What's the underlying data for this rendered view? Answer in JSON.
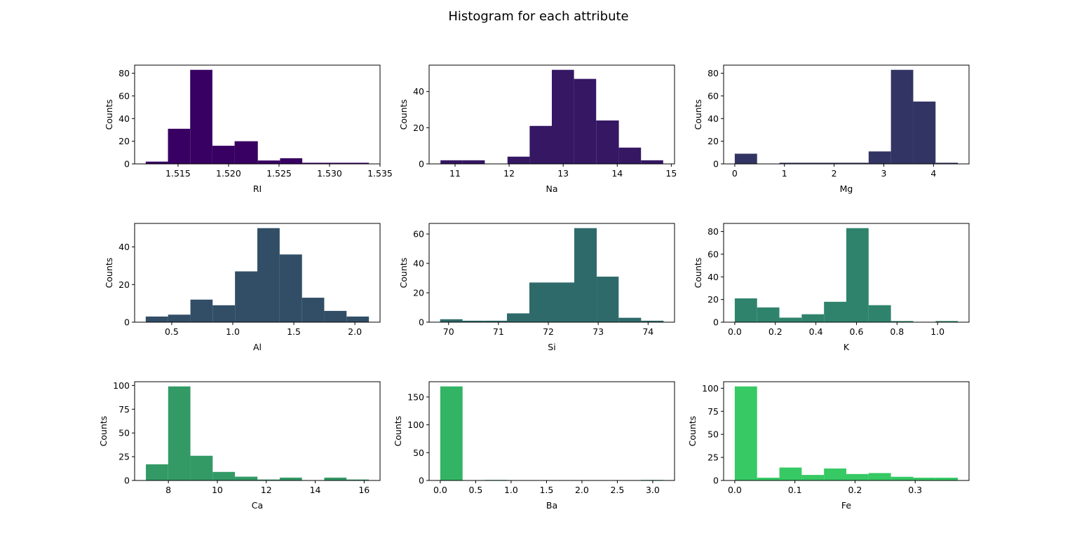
{
  "title": "Histogram for each attribute",
  "chart_data": [
    {
      "type": "histogram",
      "xlabel": "RI",
      "ylabel": "Counts",
      "color": "#370062",
      "bins": [
        1.5118,
        1.514,
        1.5162,
        1.5184,
        1.5206,
        1.5229,
        1.5251,
        1.5273,
        1.5295,
        1.5317,
        1.5339
      ],
      "values": [
        2,
        31,
        83,
        16,
        20,
        3,
        5,
        1,
        1,
        1
      ],
      "xlim": [
        1.5107,
        1.535
      ],
      "ylim": [
        0,
        87.15
      ],
      "xticks": [
        1.515,
        {
          "value": 1.52,
          "label": "1.520"
        },
        1.525,
        {
          "value": 1.53,
          "label": "1.530"
        },
        1.535
      ],
      "yticks": [
        0,
        20,
        40,
        60,
        80
      ]
    },
    {
      "type": "histogram",
      "xlabel": "Na",
      "ylabel": "Counts",
      "color": "#351764",
      "bins": [
        10.73,
        11.14,
        11.55,
        11.97,
        12.38,
        12.79,
        13.2,
        13.61,
        14.03,
        14.44,
        14.85
      ],
      "values": [
        2,
        2,
        0,
        4,
        21,
        52,
        47,
        24,
        9,
        2
      ],
      "xlim": [
        10.52,
        15.06
      ],
      "ylim": [
        0,
        54.6
      ],
      "xticks": [
        11,
        12,
        13,
        14,
        15
      ],
      "yticks": [
        0,
        20,
        40
      ]
    },
    {
      "type": "histogram",
      "xlabel": "Mg",
      "ylabel": "Counts",
      "color": "#323463",
      "bins": [
        0,
        0.449,
        0.898,
        1.347,
        1.796,
        2.245,
        2.694,
        3.143,
        3.592,
        4.041,
        4.49
      ],
      "values": [
        9,
        0,
        1,
        1,
        1,
        1,
        11,
        83,
        55,
        1
      ],
      "xlim": [
        -0.2245,
        4.7145
      ],
      "ylim": [
        0,
        87.15
      ],
      "xticks": [
        0,
        1,
        2,
        3,
        4
      ],
      "yticks": [
        0,
        20,
        40,
        60,
        80
      ]
    },
    {
      "type": "histogram",
      "xlabel": "Al",
      "ylabel": "Counts",
      "color": "#314e66",
      "bins": [
        0.287,
        0.47,
        0.653,
        0.835,
        1.018,
        1.201,
        1.384,
        1.567,
        1.749,
        1.932,
        2.115
      ],
      "values": [
        3,
        4,
        12,
        9,
        27,
        50,
        36,
        13,
        6,
        3
      ],
      "xlim": [
        0.196,
        2.206
      ],
      "ylim": [
        0,
        52.5
      ],
      "xticks": [
        0.5,
        {
          "value": 1,
          "label": "1.0"
        },
        1.5,
        {
          "value": 2,
          "label": "2.0"
        }
      ],
      "yticks": [
        0,
        20,
        40
      ]
    },
    {
      "type": "histogram",
      "xlabel": "Si",
      "ylabel": "Counts",
      "color": "#2f6a6a",
      "bins": [
        69.83,
        70.28,
        70.73,
        71.17,
        71.62,
        72.07,
        72.52,
        72.97,
        73.41,
        73.86,
        74.31
      ],
      "values": [
        2,
        1,
        1,
        6,
        27,
        27,
        64,
        31,
        3,
        1
      ],
      "xlim": [
        69.61,
        74.53
      ],
      "ylim": [
        0,
        67.2
      ],
      "xticks": [
        70,
        71,
        72,
        73,
        74
      ],
      "yticks": [
        0,
        20,
        40,
        60
      ]
    },
    {
      "type": "histogram",
      "xlabel": "K",
      "ylabel": "Counts",
      "color": "#2f836c",
      "bins": [
        0,
        0.11,
        0.22,
        0.33,
        0.44,
        0.55,
        0.66,
        0.77,
        0.88,
        0.99,
        1.1
      ],
      "values": [
        21,
        13,
        4,
        7,
        18,
        83,
        15,
        1,
        0,
        1
      ],
      "xlim": [
        -0.055,
        1.155
      ],
      "ylim": [
        0,
        87.15
      ],
      "xticks": [
        {
          "value": 0,
          "label": "0.0"
        },
        0.2,
        0.4,
        0.6,
        0.8,
        {
          "value": 1,
          "label": "1.0"
        }
      ],
      "yticks": [
        0,
        20,
        40,
        60,
        80
      ]
    },
    {
      "type": "histogram",
      "xlabel": "Ca",
      "ylabel": "Counts",
      "color": "#339a66",
      "bins": [
        7.08,
        7.99,
        8.9,
        9.81,
        10.72,
        11.64,
        12.55,
        13.46,
        14.37,
        15.28,
        16.19
      ],
      "values": [
        17,
        99,
        26,
        9,
        4,
        1,
        3,
        0,
        3,
        1
      ],
      "xlim": [
        6.62,
        16.65
      ],
      "ylim": [
        0,
        103.95
      ],
      "xticks": [
        8,
        10,
        12,
        14,
        16
      ],
      "yticks": [
        0,
        25,
        50,
        75,
        100
      ]
    },
    {
      "type": "histogram",
      "xlabel": "Ba",
      "ylabel": "Counts",
      "color": "#33b464",
      "bins": [
        0,
        0.315,
        0.63,
        0.945,
        1.26,
        1.575,
        1.89,
        2.205,
        2.52,
        2.835,
        3.15
      ],
      "values": [
        169,
        0,
        1,
        0,
        0,
        0,
        0,
        0,
        0,
        1
      ],
      "xlim": [
        -0.1575,
        3.3075
      ],
      "ylim": [
        0,
        177.45
      ],
      "xticks": [
        {
          "value": 0,
          "label": "0.0"
        },
        0.5,
        {
          "value": 1,
          "label": "1.0"
        },
        1.5,
        {
          "value": 2,
          "label": "2.0"
        },
        2.5,
        {
          "value": 3,
          "label": "3.0"
        }
      ],
      "yticks": [
        0,
        50,
        100,
        150
      ]
    },
    {
      "type": "histogram",
      "xlabel": "Fe",
      "ylabel": "Counts",
      "color": "#36c964",
      "bins": [
        0,
        0.0371,
        0.0742,
        0.1113,
        0.1484,
        0.1855,
        0.2226,
        0.2597,
        0.2968,
        0.3339,
        0.371
      ],
      "values": [
        102,
        3,
        14,
        6,
        13,
        7,
        8,
        4,
        3,
        3
      ],
      "xlim": [
        -0.01855,
        0.38955
      ],
      "ylim": [
        0,
        107.1
      ],
      "xticks": [
        {
          "value": 0,
          "label": "0.0"
        },
        0.1,
        0.2,
        0.3
      ],
      "yticks": [
        0,
        25,
        50,
        75,
        100
      ]
    }
  ]
}
